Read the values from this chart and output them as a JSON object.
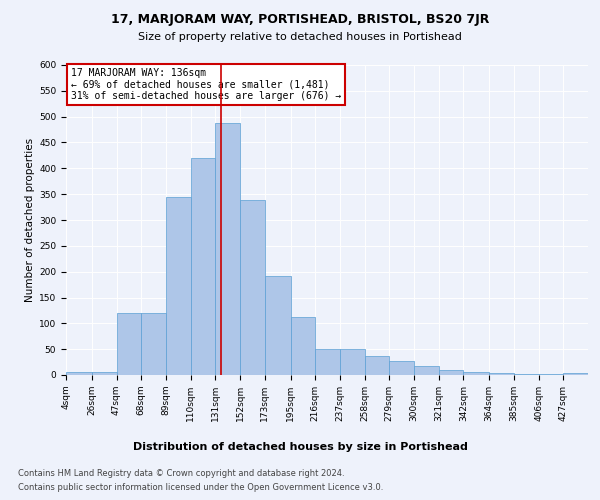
{
  "title": "17, MARJORAM WAY, PORTISHEAD, BRISTOL, BS20 7JR",
  "subtitle": "Size of property relative to detached houses in Portishead",
  "xlabel": "Distribution of detached houses by size in Portishead",
  "ylabel": "Number of detached properties",
  "property_label": "17 MARJORAM WAY: 136sqm",
  "annotation_line1": "← 69% of detached houses are smaller (1,481)",
  "annotation_line2": "31% of semi-detached houses are larger (676) →",
  "footer_line1": "Contains HM Land Registry data © Crown copyright and database right 2024.",
  "footer_line2": "Contains public sector information licensed under the Open Government Licence v3.0.",
  "bin_edges": [
    4,
    26,
    47,
    68,
    89,
    110,
    131,
    152,
    173,
    195,
    216,
    237,
    258,
    279,
    300,
    321,
    342,
    364,
    385,
    406,
    427
  ],
  "bar_heights": [
    5,
    5,
    120,
    120,
    345,
    420,
    487,
    338,
    192,
    113,
    50,
    50,
    37,
    28,
    18,
    10,
    5,
    3,
    2,
    2,
    3
  ],
  "bar_color": "#aec6e8",
  "bar_edge_color": "#5a9fd4",
  "vline_color": "#cc0000",
  "vline_x": 136,
  "annotation_box_color": "#ffffff",
  "annotation_box_edge": "#cc0000",
  "ylim": [
    0,
    600
  ],
  "background_color": "#eef2fb",
  "title_fontsize": 9,
  "subtitle_fontsize": 8,
  "ylabel_fontsize": 7.5,
  "tick_fontsize": 6.5,
  "xlabel_fontsize": 8,
  "annotation_fontsize": 7,
  "footer_fontsize": 6
}
